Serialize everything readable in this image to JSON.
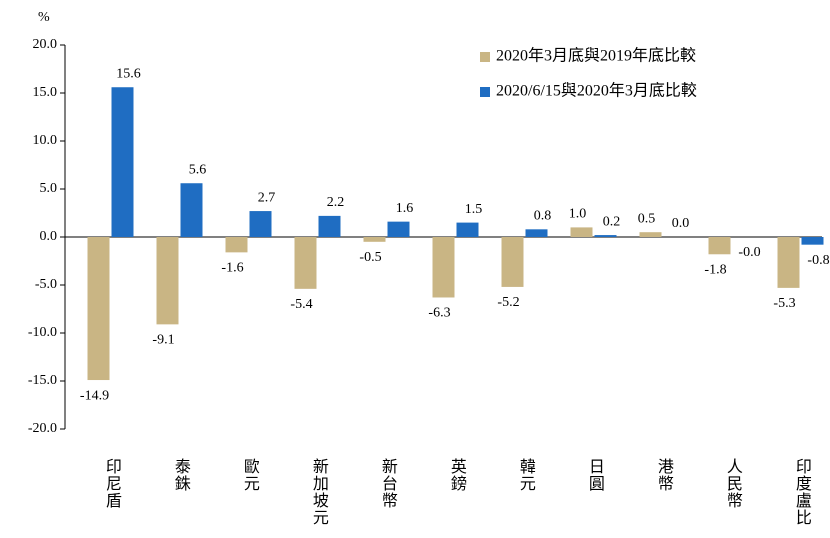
{
  "chart_data": {
    "type": "bar",
    "y_unit": "%",
    "categories": [
      "印尼盾",
      "泰銖",
      "歐元",
      "新加坡元",
      "新台幣",
      "英鎊",
      "韓元",
      "日圓",
      "港幣",
      "人民幣",
      "印度盧比"
    ],
    "series": [
      {
        "name": "2020年3月底與2019年底比較",
        "color": "#c9b584",
        "values": [
          -14.9,
          -9.1,
          -1.6,
          -5.4,
          -0.5,
          -6.3,
          -5.2,
          1.0,
          0.5,
          -1.8,
          -5.3
        ],
        "value_labels": [
          "-14.9",
          "-9.1",
          "-1.6",
          "-5.4",
          "-0.5",
          "-6.3",
          "-5.2",
          "1.0",
          "0.5",
          "-1.8",
          "-5.3"
        ]
      },
      {
        "name": "2020/6/15與2020年3月底比較",
        "color": "#1f6dc2",
        "values": [
          15.6,
          5.6,
          2.7,
          2.2,
          1.6,
          1.5,
          0.8,
          0.2,
          0.0,
          0,
          -0.8
        ],
        "value_labels": [
          "15.6",
          "5.6",
          "2.7",
          "2.2",
          "1.6",
          "1.5",
          "0.8",
          "0.2",
          "0.0",
          "-0.0",
          "-0.8"
        ]
      }
    ],
    "ylim": [
      -20,
      20
    ],
    "yticks": [
      {
        "value": -20,
        "label": "-20.0"
      },
      {
        "value": -15,
        "label": "-15.0"
      },
      {
        "value": -10,
        "label": "-10.0"
      },
      {
        "value": -5,
        "label": "-5.0"
      },
      {
        "value": 0,
        "label": "0.0"
      },
      {
        "value": 5,
        "label": "5.0"
      },
      {
        "value": 10,
        "label": "10.0"
      },
      {
        "value": 15,
        "label": "15.0"
      },
      {
        "value": 20,
        "label": "20.0"
      }
    ],
    "negative_label_color": "#ff0000",
    "positive_label_color": "#1f3a5a",
    "legend": "top-right",
    "grid": false
  }
}
